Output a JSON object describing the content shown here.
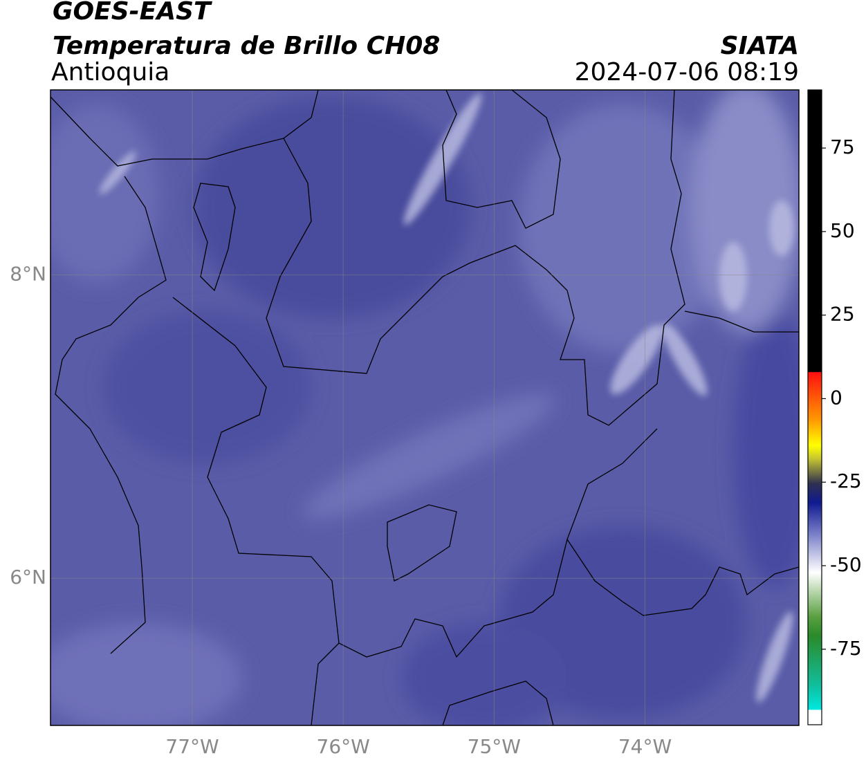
{
  "header": {
    "line1": "GOES-EAST",
    "line2": "Temperatura de Brillo CH08",
    "line3": "Antioquia",
    "source": "SIATA",
    "datetime": "2024-07-06 08:19"
  },
  "map": {
    "xlim": [
      -77.94,
      -72.98
    ],
    "ylim": [
      5.03,
      9.22
    ],
    "xticks": [
      {
        "value": -77,
        "label": "77°W"
      },
      {
        "value": -76,
        "label": "76°W"
      },
      {
        "value": -75,
        "label": "75°W"
      },
      {
        "value": -74,
        "label": "74°W"
      }
    ],
    "yticks": [
      {
        "value": 8,
        "label": "8°N"
      },
      {
        "value": 6,
        "label": "6°N"
      }
    ]
  },
  "colorbar": {
    "lim": [
      -97.6,
      92.4
    ],
    "ticks": [
      75,
      50,
      25,
      0,
      -25,
      -50,
      -75
    ]
  }
}
